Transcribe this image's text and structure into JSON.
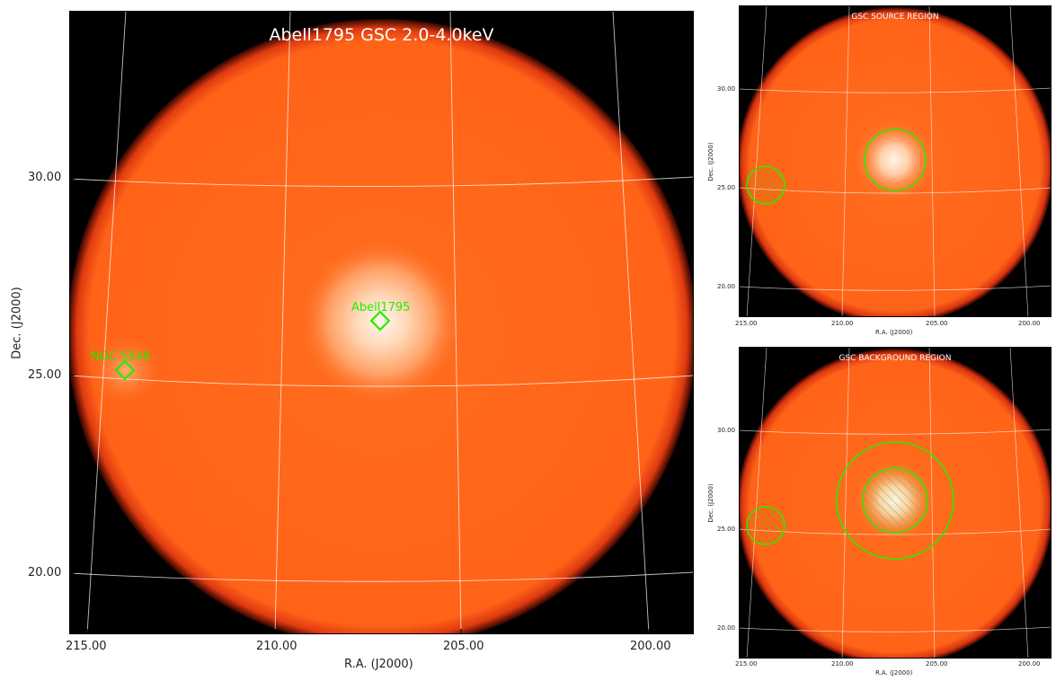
{
  "main": {
    "title": "Abell1795 GSC 2.0-4.0keV",
    "x_ticks": [
      "215.00",
      "210.00",
      "205.00",
      "200.00"
    ],
    "y_ticks": [
      "30.00",
      "25.00",
      "20.00"
    ],
    "xlabel": "R.A. (J2000)",
    "ylabel": "Dec. (J2000)",
    "markers": [
      {
        "label": "Abell1795",
        "color": "#22ee00"
      },
      {
        "label": "NGC 5548",
        "color": "#22ee00"
      }
    ]
  },
  "source_panel": {
    "title": "GSC SOURCE REGION",
    "x_ticks": [
      "215.00",
      "210.00",
      "205.00",
      "200.00"
    ],
    "y_ticks": [
      "30.00",
      "25.00",
      "20.00"
    ],
    "xlabel": "R.A. (J2000)",
    "ylabel": "Dec. (J2000)"
  },
  "background_panel": {
    "title": "GSC BACKGROUND REGION",
    "x_ticks": [
      "215.00",
      "210.00",
      "205.00",
      "200.00"
    ],
    "y_ticks": [
      "30.00",
      "25.00",
      "20.00"
    ],
    "xlabel": "R.A. (J2000)",
    "ylabel": "Dec. (J2000)"
  },
  "colors": {
    "disk": "#ff6a1a",
    "background": "#000000",
    "region": "#44dd00",
    "grid": "#ffffff"
  }
}
